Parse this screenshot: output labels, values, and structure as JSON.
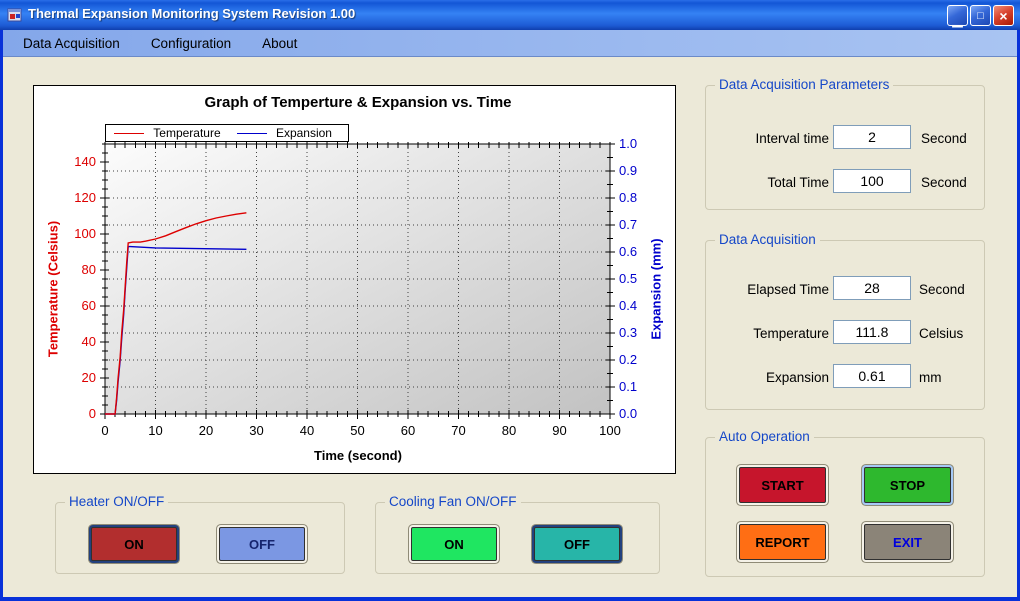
{
  "window": {
    "title": "Thermal Expansion Monitoring System Revision 1.00",
    "buttons": [
      {
        "name": "minimize",
        "glyph": "▁"
      },
      {
        "name": "maximize",
        "glyph": "□"
      },
      {
        "name": "close",
        "glyph": "×"
      }
    ]
  },
  "menu": {
    "items": [
      {
        "label": "Data Acquisition"
      },
      {
        "label": "Configuration"
      },
      {
        "label": "About"
      }
    ]
  },
  "chart_data": {
    "type": "line",
    "title": "Graph of Temperture & Expansion vs. Time",
    "xlabel": "Time (second)",
    "ylabel_left": "Temperature (Celsius)",
    "ylabel_right": "Expansion (mm)",
    "xlim": [
      0,
      100
    ],
    "x_major": 10,
    "x_minor": 2,
    "ylim_left": [
      0,
      150
    ],
    "y_left_major": 20,
    "y_left_minor": 5,
    "y_left_label_max": 140,
    "ylim_right": [
      0,
      1.0
    ],
    "y_right_major": 0.1,
    "y_right_minor": 0.05,
    "grid": "dotted",
    "legend_position": "top-left",
    "axis_color_left": "#dd0000",
    "axis_color_right": "#0000cc",
    "legend": [
      "Temperature",
      "Expansion"
    ],
    "series": [
      {
        "name": "Temperature",
        "color": "#dd0000",
        "axis": "left",
        "points": [
          [
            0,
            0
          ],
          [
            2,
            0
          ],
          [
            2.3,
            9
          ],
          [
            2.6,
            20
          ],
          [
            3,
            32
          ],
          [
            3.3,
            45
          ],
          [
            3.7,
            58
          ],
          [
            4,
            71
          ],
          [
            4.3,
            84
          ],
          [
            4.6,
            95
          ],
          [
            5.5,
            95.5
          ],
          [
            7,
            95.5
          ],
          [
            8,
            96
          ],
          [
            10,
            97.2
          ],
          [
            12,
            99
          ],
          [
            14,
            101.3
          ],
          [
            16,
            103.5
          ],
          [
            18,
            105.6
          ],
          [
            20,
            107.4
          ],
          [
            22,
            108.9
          ],
          [
            24,
            110
          ],
          [
            26,
            111
          ],
          [
            28,
            111.8
          ]
        ]
      },
      {
        "name": "Expansion",
        "color": "#0000cc",
        "axis": "right",
        "points": [
          [
            0,
            0
          ],
          [
            2,
            0
          ],
          [
            2.3,
            0.05
          ],
          [
            2.6,
            0.12
          ],
          [
            3,
            0.2
          ],
          [
            3.3,
            0.28
          ],
          [
            3.7,
            0.37
          ],
          [
            4,
            0.46
          ],
          [
            4.3,
            0.54
          ],
          [
            4.6,
            0.62
          ],
          [
            5,
            0.62
          ],
          [
            10,
            0.615
          ],
          [
            28,
            0.61
          ]
        ]
      }
    ]
  },
  "panels": {
    "params": {
      "title": "Data Acquisition Parameters",
      "fields": [
        {
          "label": "Interval time",
          "value": "2",
          "unit": "Second"
        },
        {
          "label": "Total Time",
          "value": "100",
          "unit": "Second"
        }
      ]
    },
    "acquisition": {
      "title": "Data Acquisition",
      "fields": [
        {
          "label": "Elapsed Time",
          "value": "28",
          "unit": "Second"
        },
        {
          "label": "Temperature",
          "value": "111.8",
          "unit": "Celsius"
        },
        {
          "label": "Expansion",
          "value": "0.61",
          "unit": "mm"
        }
      ]
    },
    "auto": {
      "title": "Auto Operation",
      "buttons": [
        {
          "label": "START",
          "bg": "#c6152c",
          "fg": "#000000",
          "ring": "#f5f2e8"
        },
        {
          "label": "STOP",
          "bg": "#2eb82e",
          "fg": "#000000",
          "ring": "#a6c9f6"
        },
        {
          "label": "REPORT",
          "bg": "#ff6e14",
          "fg": "#000000",
          "ring": "#f5f2e8"
        },
        {
          "label": "EXIT",
          "bg": "#8b8478",
          "fg": "#0000dd",
          "ring": "#f5f2e8"
        }
      ]
    },
    "heater": {
      "title": "Heater ON/OFF",
      "buttons": [
        {
          "label": "ON",
          "bg": "#b22e2e",
          "fg": "#000000",
          "ring": "#23417e"
        },
        {
          "label": "OFF",
          "bg": "#7b97e3",
          "fg": "#15246e",
          "ring": "#f5f2e8"
        }
      ]
    },
    "fan": {
      "title": "Cooling Fan ON/OFF",
      "buttons": [
        {
          "label": "ON",
          "bg": "#1fe661",
          "fg": "#000000",
          "ring": "#f5f2e8"
        },
        {
          "label": "OFF",
          "bg": "#27b5a8",
          "fg": "#000000",
          "ring": "#23417e"
        }
      ]
    }
  }
}
